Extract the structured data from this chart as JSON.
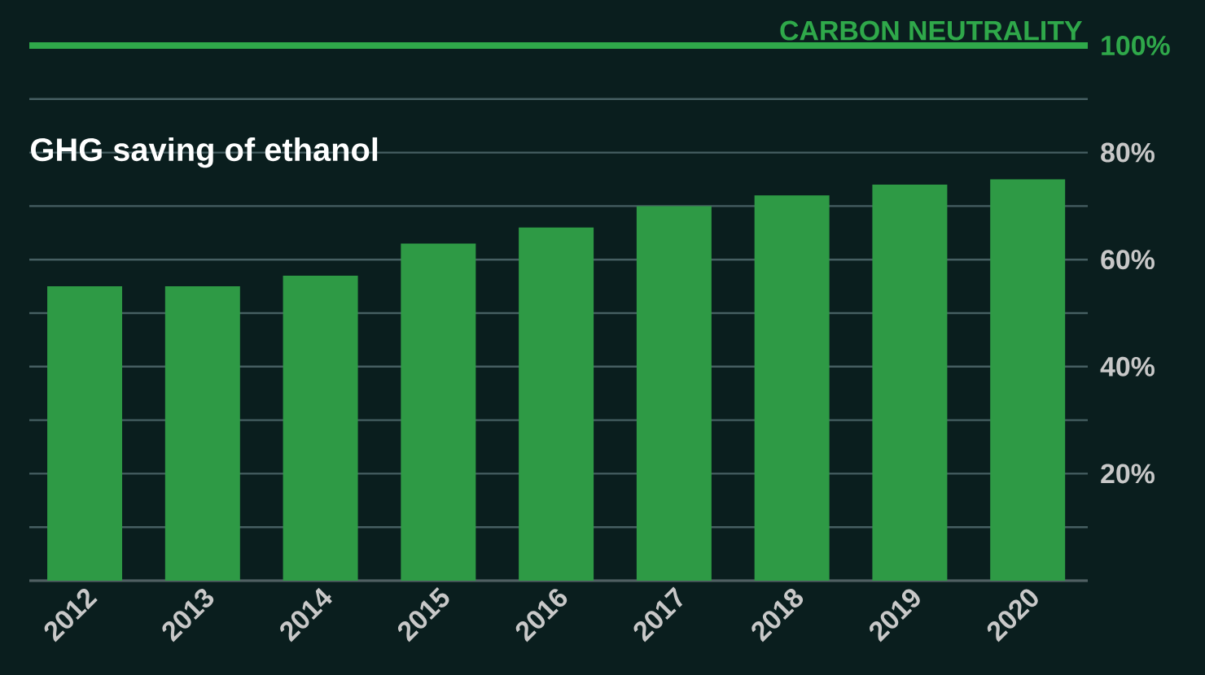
{
  "chart_data": {
    "type": "bar",
    "title": "GHG saving of ethanol",
    "categories": [
      "2012",
      "2013",
      "2014",
      "2015",
      "2016",
      "2017",
      "2018",
      "2019",
      "2020"
    ],
    "values": [
      55,
      55,
      57,
      63,
      66,
      70,
      72,
      74,
      75
    ],
    "color": "#2e9a45",
    "ylim": [
      0,
      100
    ],
    "yticks": [
      {
        "value": 0,
        "label": null
      },
      {
        "value": 10,
        "label": null
      },
      {
        "value": 20,
        "label": "20%"
      },
      {
        "value": 30,
        "label": null
      },
      {
        "value": 40,
        "label": "40%"
      },
      {
        "value": 50,
        "label": null
      },
      {
        "value": 60,
        "label": "60%"
      },
      {
        "value": 70,
        "label": null
      },
      {
        "value": 80,
        "label": "80%"
      },
      {
        "value": 90,
        "label": null
      },
      {
        "value": 100,
        "label": "100%"
      }
    ],
    "ref_lines": [
      {
        "axis": "y",
        "value": 100,
        "label": "CARBON NEUTRALITY",
        "color": "#2fa84a"
      }
    ],
    "grid": "y"
  }
}
